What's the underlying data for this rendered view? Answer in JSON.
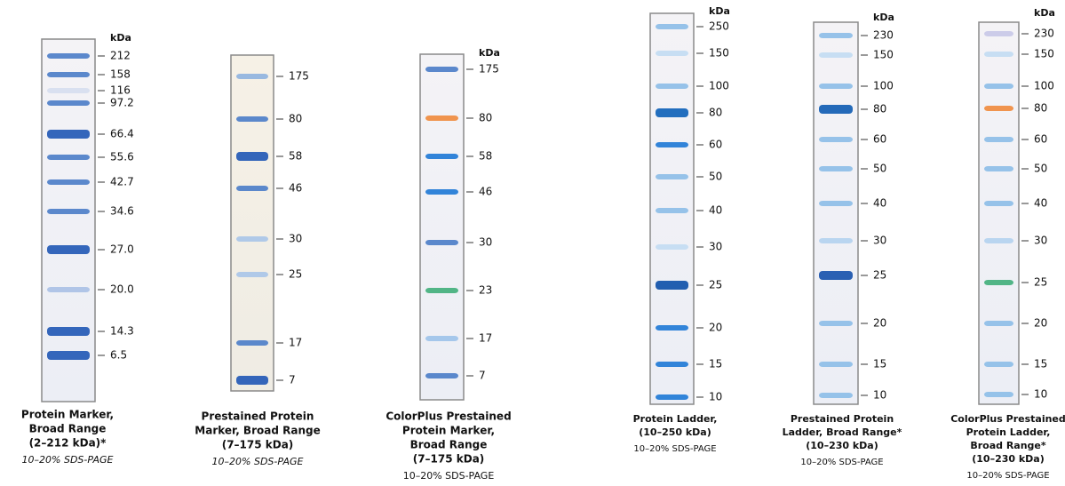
{
  "gels": [
    {
      "unit": "kDa",
      "bands": [
        "212",
        "158",
        "116",
        "97.2",
        "66.4",
        "55.6",
        "42.7",
        "34.6",
        "27.0",
        "20.0",
        "14.3",
        "6.5"
      ],
      "caption": [
        "Protein Marker,",
        "Broad Range",
        "(2–212 kDa)*"
      ],
      "method": "10–20% SDS-PAGE"
    },
    {
      "bands": [
        "175",
        "80",
        "58",
        "46",
        "30",
        "25",
        "17",
        "7"
      ],
      "caption": [
        "Prestained Protein",
        "Marker, Broad Range",
        "(7–175 kDa)"
      ],
      "method": "10–20% SDS-PAGE"
    },
    {
      "unit": "kDa",
      "bands": [
        "175",
        "80",
        "58",
        "46",
        "30",
        "23",
        "17",
        "7"
      ],
      "caption": [
        "ColorPlus Prestained",
        "Protein Marker,",
        "Broad Range",
        "(7–175 kDa)"
      ],
      "method": "10–20% SDS-PAGE"
    },
    {
      "unit": "kDa",
      "bands": [
        "250",
        "150",
        "100",
        "80",
        "60",
        "50",
        "40",
        "30",
        "25",
        "20",
        "15",
        "10"
      ],
      "caption": [
        "Protein Ladder,",
        "(10–250 kDa)"
      ],
      "method": "10–20% SDS-PAGE"
    },
    {
      "unit": "kDa",
      "bands": [
        "230",
        "150",
        "100",
        "80",
        "60",
        "50",
        "40",
        "30",
        "25",
        "20",
        "15",
        "10"
      ],
      "caption": [
        "Prestained Protein",
        "Ladder, Broad Range*",
        "(10–230 kDa)"
      ],
      "method": "10–20% SDS-PAGE"
    },
    {
      "unit": "kDa",
      "bands": [
        "230",
        "150",
        "100",
        "80",
        "60",
        "50",
        "40",
        "30",
        "25",
        "20",
        "15",
        "10"
      ],
      "caption": [
        "ColorPlus Prestained",
        "Protein Ladder,",
        "Broad Range*",
        "(10–230 kDa)"
      ],
      "method": "10–20% SDS-PAGE"
    }
  ]
}
